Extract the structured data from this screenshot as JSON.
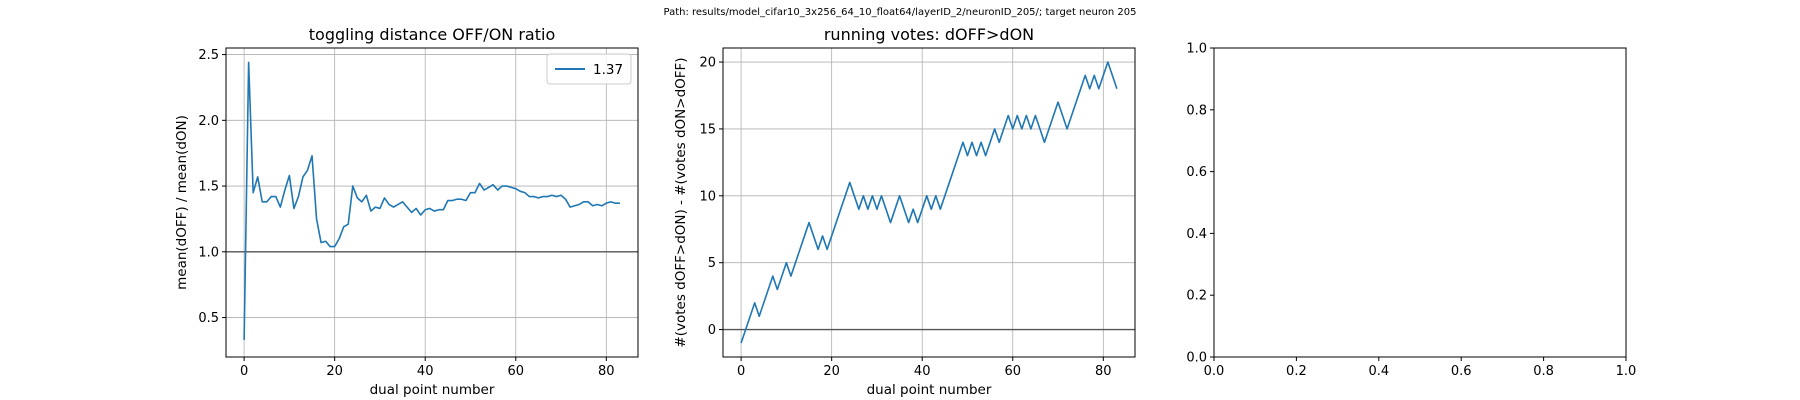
{
  "suptitle": "Path: results/model_cifar10_3x256_64_10_float64/layerID_2/neuronID_205/; target neuron 205",
  "colors": {
    "line": "#1f77b4",
    "grid": "#b0b0b0",
    "refline": "#555555",
    "axes": "#000000"
  },
  "chart_data": [
    {
      "type": "line",
      "title": "toggling distance OFF/ON ratio",
      "xlabel": "dual point number",
      "ylabel": "mean(dOFF) / mean(dON)",
      "xlim": [
        -4,
        87
      ],
      "ylim": [
        0.2,
        2.55
      ],
      "xticks": [
        0,
        20,
        40,
        60,
        80
      ],
      "yticks": [
        0.5,
        1.0,
        1.5,
        2.0,
        2.5
      ],
      "ytick_labels": [
        "0.5",
        "1.0",
        "1.5",
        "2.0",
        "2.5"
      ],
      "grid": true,
      "legend": {
        "position": "top-right",
        "entries": [
          "1.37"
        ]
      },
      "hline": 1.0,
      "series": [
        {
          "name": "1.37",
          "values": [
            0.33,
            2.44,
            1.45,
            1.57,
            1.38,
            1.38,
            1.42,
            1.42,
            1.34,
            1.47,
            1.58,
            1.33,
            1.42,
            1.57,
            1.62,
            1.73,
            1.25,
            1.07,
            1.08,
            1.04,
            1.04,
            1.1,
            1.19,
            1.21,
            1.5,
            1.41,
            1.38,
            1.43,
            1.31,
            1.34,
            1.33,
            1.41,
            1.36,
            1.34,
            1.36,
            1.38,
            1.34,
            1.3,
            1.33,
            1.28,
            1.32,
            1.33,
            1.31,
            1.32,
            1.32,
            1.39,
            1.39,
            1.4,
            1.4,
            1.39,
            1.45,
            1.45,
            1.52,
            1.47,
            1.49,
            1.51,
            1.47,
            1.5,
            1.5,
            1.49,
            1.48,
            1.46,
            1.45,
            1.42,
            1.42,
            1.41,
            1.42,
            1.42,
            1.43,
            1.42,
            1.43,
            1.4,
            1.34,
            1.35,
            1.36,
            1.38,
            1.38,
            1.35,
            1.36,
            1.35,
            1.37,
            1.38,
            1.37,
            1.37
          ]
        }
      ]
    },
    {
      "type": "line",
      "title": "running votes: dOFF>dON",
      "xlabel": "dual point number",
      "ylabel": "#(votes dOFF>dON) - #(votes dON>dOFF)",
      "xlim": [
        -4,
        87
      ],
      "ylim": [
        -2.05,
        21.05
      ],
      "xticks": [
        0,
        20,
        40,
        60,
        80
      ],
      "yticks": [
        0,
        5,
        10,
        15,
        20
      ],
      "ytick_labels": [
        "0",
        "5",
        "10",
        "15",
        "20"
      ],
      "grid": true,
      "hline": 0,
      "series": [
        {
          "name": "",
          "values": [
            -1,
            0,
            1,
            2,
            1,
            2,
            3,
            4,
            3,
            4,
            5,
            4,
            5,
            6,
            7,
            8,
            7,
            6,
            7,
            6,
            7,
            8,
            9,
            10,
            11,
            10,
            9,
            10,
            9,
            10,
            9,
            10,
            9,
            8,
            9,
            10,
            9,
            8,
            9,
            8,
            9,
            10,
            9,
            10,
            9,
            10,
            11,
            12,
            13,
            14,
            13,
            14,
            13,
            14,
            13,
            14,
            15,
            14,
            15,
            16,
            15,
            16,
            15,
            16,
            15,
            16,
            15,
            14,
            15,
            16,
            17,
            16,
            15,
            16,
            17,
            18,
            19,
            18,
            19,
            18,
            19,
            20,
            19,
            18
          ]
        }
      ]
    },
    {
      "type": "line",
      "title": "",
      "xlabel": "",
      "ylabel": "",
      "xlim": [
        0,
        1
      ],
      "ylim": [
        0,
        1
      ],
      "xticks": [
        0,
        0.2,
        0.4,
        0.6,
        0.8,
        1.0
      ],
      "xtick_labels": [
        "0.0",
        "0.2",
        "0.4",
        "0.6",
        "0.8",
        "1.0"
      ],
      "yticks": [
        0,
        0.2,
        0.4,
        0.6,
        0.8,
        1.0
      ],
      "ytick_labels": [
        "0.0",
        "0.2",
        "0.4",
        "0.6",
        "0.8",
        "1.0"
      ],
      "grid": false,
      "series": []
    }
  ]
}
